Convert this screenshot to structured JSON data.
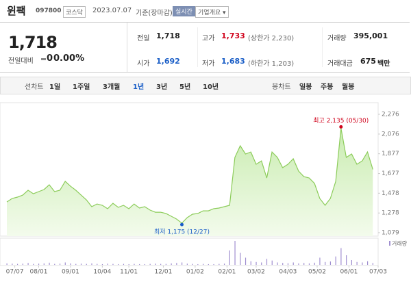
{
  "header": {
    "name": "윈팩",
    "code": "097800",
    "market": "코스닥",
    "date": "2023.07.07",
    "basis": "기준(장마감)",
    "realtime": "실시간",
    "company_info": "기업개요"
  },
  "quote": {
    "price": "1,718",
    "change_label": "전일대비",
    "change": "0",
    "change_rate": "0.00%",
    "items": [
      {
        "label": "전일",
        "value": "1,718",
        "color": "#222222"
      },
      {
        "label": "고가",
        "value": "1,733",
        "note": "(상한가 2,230)",
        "color": "#d0021b"
      },
      {
        "label": "거래량",
        "value": "395,001",
        "color": "#222222"
      },
      {
        "label": "시가",
        "value": "1,692",
        "color": "#1a5ec7"
      },
      {
        "label": "저가",
        "value": "1,683",
        "note": "(하한가 1,203)",
        "color": "#1a5ec7"
      },
      {
        "label": "거래대금",
        "value": "675",
        "unit": "백만",
        "color": "#222222"
      }
    ]
  },
  "tabs": {
    "line_label": "선차트",
    "line_periods": [
      "1일",
      "1주일",
      "3개월",
      "1년",
      "3년",
      "5년",
      "10년"
    ],
    "selected_index": 3,
    "candle_label": "봉차트",
    "candle_periods": [
      "일봉",
      "주봉",
      "월봉"
    ]
  },
  "chart_data": {
    "type": "line",
    "color": "#8ccc5a",
    "values": [
      1390,
      1425,
      1439,
      1459,
      1508,
      1473,
      1494,
      1515,
      1563,
      1494,
      1508,
      1598,
      1549,
      1508,
      1459,
      1411,
      1342,
      1369,
      1356,
      1321,
      1376,
      1335,
      1356,
      1321,
      1369,
      1328,
      1342,
      1307,
      1286,
      1286,
      1273,
      1245,
      1217,
      1175,
      1231,
      1266,
      1273,
      1300,
      1300,
      1321,
      1328,
      1342,
      1356,
      1840,
      1958,
      1875,
      1895,
      1771,
      1805,
      1632,
      1895,
      1840,
      1736,
      1771,
      1826,
      1702,
      1646,
      1632,
      1577,
      1425,
      1356,
      1425,
      1598,
      2135,
      1840,
      1875,
      1771,
      1805,
      1895,
      1718
    ],
    "ylim": [
      1079,
      2276
    ],
    "yticks": [
      {
        "value": 1079,
        "label": "1,079"
      },
      {
        "value": 1278,
        "label": "1,278"
      },
      {
        "value": 1478,
        "label": "1,478"
      },
      {
        "value": 1677,
        "label": "1,677"
      },
      {
        "value": 1877,
        "label": "1,877"
      },
      {
        "value": 2076,
        "label": "2,076"
      },
      {
        "value": 2276,
        "label": "2,276"
      }
    ],
    "xlim": [
      0,
      70
    ],
    "xticks": [
      {
        "value": 1.5,
        "label": "07/07"
      },
      {
        "value": 6,
        "label": "08/01"
      },
      {
        "value": 12,
        "label": "09/01"
      },
      {
        "value": 18,
        "label": "10/04"
      },
      {
        "value": 23,
        "label": "11/01"
      },
      {
        "value": 29.5,
        "label": "12/01"
      },
      {
        "value": 35.5,
        "label": "01/02"
      },
      {
        "value": 41.5,
        "label": "02/01"
      },
      {
        "value": 47,
        "label": "03/02"
      },
      {
        "value": 53,
        "label": "04/03"
      },
      {
        "value": 58.5,
        "label": "05/02"
      },
      {
        "value": 64.5,
        "label": "06/01"
      },
      {
        "value": 70,
        "label": "07/03"
      }
    ],
    "annotations": {
      "high": "최고 2,135 (05/30)",
      "high_color": "#d0021b",
      "low": "최저 1,175 (12/27)",
      "low_color": "#1a5ec7"
    },
    "volume": {
      "name": "거래량",
      "color": "#a08fd0",
      "ylim": [
        0,
        100
      ],
      "values": [
        6,
        5,
        4,
        5,
        8,
        4,
        5,
        6,
        9,
        4,
        5,
        10,
        6,
        4,
        5,
        4,
        6,
        4,
        3,
        5,
        4,
        3,
        4,
        3,
        4,
        3,
        3,
        4,
        5,
        4,
        4,
        6,
        8,
        10,
        5,
        4,
        3,
        4,
        3,
        3,
        4,
        5,
        60,
        100,
        50,
        30,
        15,
        12,
        10,
        25,
        18,
        10,
        8,
        7,
        10,
        6,
        8,
        6,
        9,
        30,
        12,
        14,
        35,
        70,
        40,
        20,
        12,
        10,
        15,
        8
      ]
    }
  }
}
